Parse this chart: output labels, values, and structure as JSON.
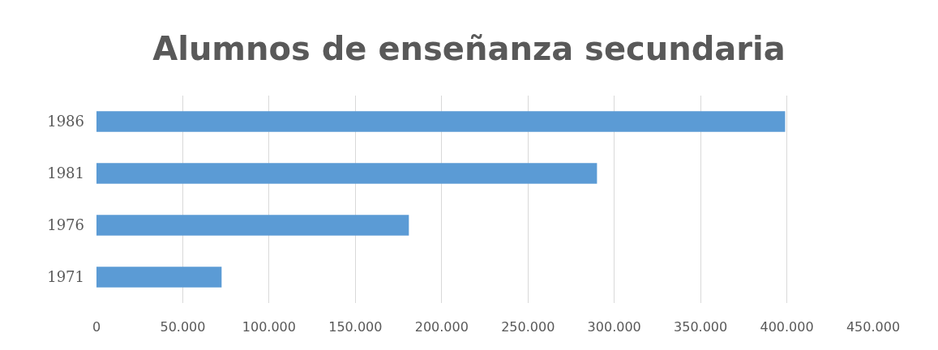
{
  "chart_data": {
    "type": "bar",
    "title": "Alumnos de enseñanza secundaria",
    "orientation": "horizontal",
    "categories": [
      "1986",
      "1981",
      "1976",
      "1971"
    ],
    "values": [
      399000,
      290000,
      181000,
      72500
    ],
    "color": "#5b9bd5",
    "xlim": [
      0,
      450000
    ],
    "xticks": [
      0,
      {
        "value": 50000,
        "label": "50.000"
      },
      {
        "value": 100000,
        "label": "100.000"
      },
      {
        "value": 150000,
        "label": "150.000"
      },
      {
        "value": 200000,
        "label": "200.000"
      },
      {
        "value": 250000,
        "label": "250.000"
      },
      {
        "value": 300000,
        "label": "300.000"
      },
      {
        "value": 350000,
        "label": "350.000"
      },
      {
        "value": 400000,
        "label": "400.000"
      },
      {
        "value": 450000,
        "label": "450.000"
      }
    ],
    "grid": "x"
  }
}
